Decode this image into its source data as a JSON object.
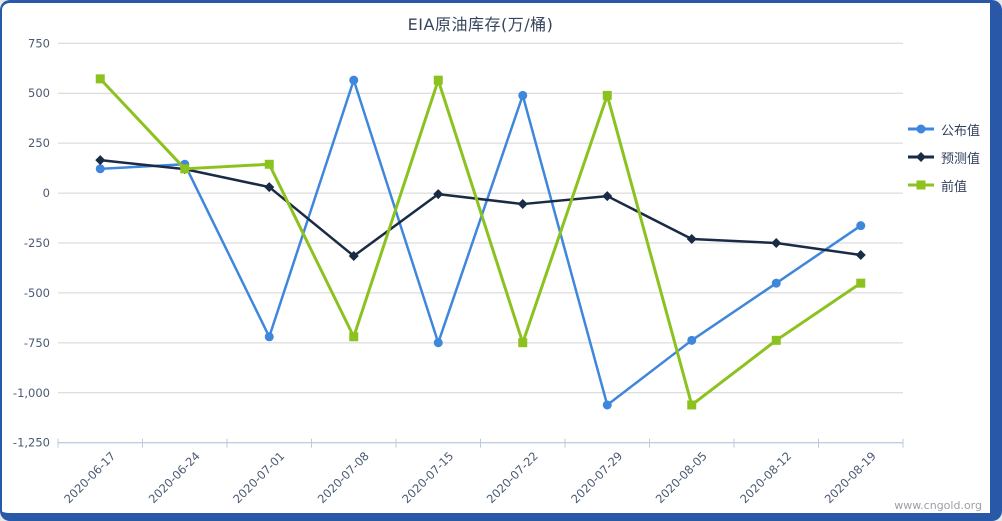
{
  "chart_panel": {
    "border_color": "#2a58a9",
    "background": "#ffffff",
    "watermark": "www.cngold.org"
  },
  "chart_data": {
    "type": "line",
    "title": "EIA原油库存(万/桶)",
    "xlabel": "",
    "ylabel": "",
    "grid": true,
    "legend_position": "right",
    "ylim": [
      -1250,
      750
    ],
    "ytick_step": 250,
    "ytick_labels": [
      "750",
      "500",
      "250",
      "0",
      "-250",
      "-500",
      "-750",
      "-1,000",
      "-1,250"
    ],
    "categories": [
      "2020-06-17",
      "2020-06-24",
      "2020-07-01",
      "2020-07-08",
      "2020-07-15",
      "2020-07-22",
      "2020-07-29",
      "2020-08-05",
      "2020-08-12",
      "2020-08-19"
    ],
    "series": [
      {
        "key": "published-value",
        "name": "公布值",
        "color": "#3e87dc",
        "marker": "circle",
        "values": [
          121.5,
          144.2,
          -719.5,
          565.4,
          -749.3,
          489.2,
          -1061.1,
          -737.3,
          -451.2,
          -163.2
        ]
      },
      {
        "key": "forecast-value",
        "name": "预测值",
        "color": "#1a2b45",
        "marker": "diamond",
        "values": [
          165,
          120,
          30,
          -315,
          -5,
          -55,
          -15,
          -230,
          -250,
          -310
        ]
      },
      {
        "key": "previous-value",
        "name": "前值",
        "color": "#8cc21f",
        "marker": "square",
        "values": [
          572,
          121.5,
          144.2,
          -719.5,
          565.4,
          -749.3,
          489.2,
          -1061.1,
          -737.3,
          -451.2
        ]
      }
    ],
    "axis_line_color": "#b9cbe0",
    "gridline_color": "#d4d4d4",
    "axis_label_color": "#4b5a73"
  }
}
